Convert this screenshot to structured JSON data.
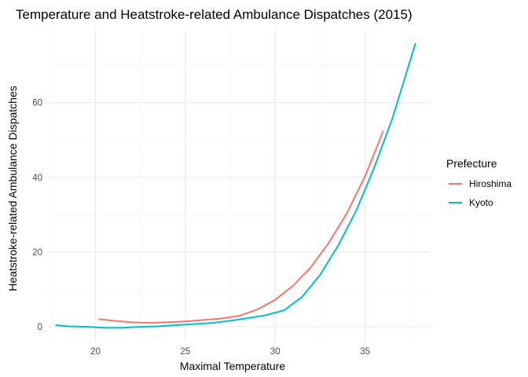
{
  "chart_data": {
    "type": "line",
    "title": "Temperature and Heatstroke-related Ambulance Dispatches (2015)",
    "xlabel": "Maximal Temperature",
    "ylabel": "Heatstroke-related Ambulance Dispatches",
    "xlim": [
      17.4,
      38.6
    ],
    "ylim": [
      -3.8,
      79.5
    ],
    "x_ticks": [
      20,
      25,
      30,
      35
    ],
    "y_ticks": [
      0,
      20,
      40,
      60
    ],
    "x_ticks_labels": [
      "20",
      "25",
      "30",
      "35"
    ],
    "y_ticks_labels": [
      "0",
      "20",
      "40",
      "60"
    ],
    "grid": true,
    "legend": {
      "title": "Prefecture",
      "position": "right"
    },
    "series": [
      {
        "name": "Hiroshima",
        "color": "#F8766D",
        "points": [
          [
            20.2,
            2.0
          ],
          [
            21,
            1.6
          ],
          [
            22,
            1.2
          ],
          [
            23,
            1.0
          ],
          [
            24,
            1.2
          ],
          [
            25,
            1.4
          ],
          [
            26,
            1.8
          ],
          [
            27,
            2.2
          ],
          [
            28,
            2.9
          ],
          [
            29,
            4.6
          ],
          [
            30,
            7.2
          ],
          [
            31,
            11.0
          ],
          [
            32,
            16.0
          ],
          [
            33,
            22.6
          ],
          [
            34,
            30.5
          ],
          [
            35,
            40.3
          ],
          [
            36,
            52.3
          ]
        ]
      },
      {
        "name": "Kyoto",
        "color": "#00BFC4",
        "points": [
          [
            17.8,
            0.4
          ],
          [
            18.5,
            0.1
          ],
          [
            19.5,
            0.0
          ],
          [
            20.5,
            -0.3
          ],
          [
            21.5,
            -0.3
          ],
          [
            22.5,
            0.0
          ],
          [
            23.5,
            0.1
          ],
          [
            24.5,
            0.4
          ],
          [
            25.5,
            0.7
          ],
          [
            26.5,
            1.0
          ],
          [
            27.5,
            1.6
          ],
          [
            28.5,
            2.3
          ],
          [
            29.5,
            3.1
          ],
          [
            30.5,
            4.4
          ],
          [
            31.5,
            8.0
          ],
          [
            32.5,
            13.9
          ],
          [
            33.5,
            21.7
          ],
          [
            34.5,
            31.0
          ],
          [
            35.5,
            42.5
          ],
          [
            36.5,
            55.5
          ],
          [
            37.8,
            75.8
          ]
        ]
      }
    ]
  }
}
